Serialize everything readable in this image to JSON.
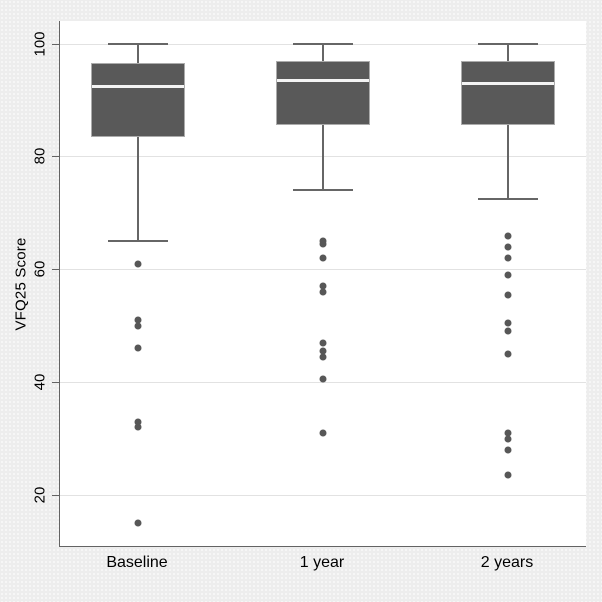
{
  "colors": {
    "page_background": "#ededed",
    "plot_background": "#ffffff",
    "grid": "#e2e2e2",
    "axis": "#636363",
    "box_fill": "#595959",
    "box_border": "#ababab",
    "median": "#f4f4f4",
    "whisker": "#666666",
    "outlier": "#575757",
    "text": "#000000"
  },
  "chart_data": {
    "type": "box",
    "title": "",
    "xlabel": "",
    "ylabel": "VFQ25 Score",
    "categories": [
      "Baseline",
      "1 year",
      "2 years"
    ],
    "yticks": [
      20,
      40,
      60,
      80,
      100
    ],
    "ylim": [
      11,
      104
    ],
    "grid": "horizontal-only",
    "legend": "none",
    "boxes": [
      {
        "category": "Baseline",
        "whisker_high": 100,
        "q3": 96.5,
        "median": 92.5,
        "q1": 83.5,
        "whisker_low": 65,
        "outliers": [
          61,
          51,
          50,
          46,
          33,
          32,
          15
        ]
      },
      {
        "category": "1 year",
        "whisker_high": 100,
        "q3": 97,
        "median": 93.5,
        "q1": 85.5,
        "whisker_low": 74,
        "outliers": [
          65,
          64.5,
          62,
          57,
          56,
          47,
          45.5,
          44.5,
          40.5,
          31
        ]
      },
      {
        "category": "2 years",
        "whisker_high": 100,
        "q3": 97,
        "median": 93,
        "q1": 85.5,
        "whisker_low": 72.5,
        "outliers": [
          66,
          64,
          62,
          59,
          55.5,
          50.5,
          49,
          45,
          31,
          30,
          28,
          23.5
        ]
      }
    ]
  }
}
